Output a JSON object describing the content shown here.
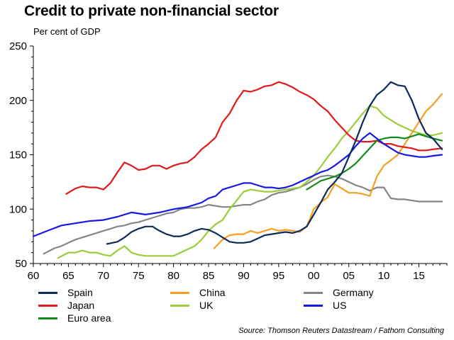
{
  "title": "Credit to private non-financial sector",
  "subtitle": "Per cent of GDP",
  "source": "Source: Thomson Reuters Datastream / Fathom Consulting",
  "chart_data": {
    "type": "line",
    "title": "Credit to private non-financial sector",
    "ylabel": "Per cent of GDP",
    "xlabel": "",
    "xlim": [
      1960,
      2019
    ],
    "ylim": [
      50,
      250
    ],
    "x_ticks": [
      "60",
      "65",
      "70",
      "75",
      "80",
      "85",
      "90",
      "95",
      "00",
      "05",
      "10",
      "15"
    ],
    "x_tick_values": [
      1960,
      1965,
      1970,
      1975,
      1980,
      1985,
      1990,
      1995,
      2000,
      2005,
      2010,
      2015
    ],
    "y_ticks": [
      "50",
      "100",
      "150",
      "200",
      "250"
    ],
    "y_tick_values": [
      50,
      100,
      150,
      200,
      250
    ],
    "legend_position": "bottom",
    "series": [
      {
        "name": "Spain",
        "color": "#0d2a5c",
        "x": [
          1970.5,
          1972,
          1973,
          1974,
          1975,
          1976,
          1977,
          1978,
          1979,
          1980,
          1981,
          1982,
          1983,
          1984,
          1985,
          1986,
          1987,
          1988,
          1989,
          1990,
          1991,
          1992,
          1993,
          1994,
          1995,
          1996,
          1997,
          1998,
          1999,
          2000,
          2001,
          2002,
          2003,
          2004,
          2005,
          2006,
          2007,
          2008,
          2009,
          2010,
          2011,
          2012,
          2013,
          2014,
          2015,
          2016,
          2017,
          2018.3
        ],
        "y": [
          68,
          70,
          74,
          79,
          82,
          84,
          84,
          80,
          77,
          75,
          75,
          77,
          80,
          82,
          81,
          78,
          74,
          70,
          69,
          69,
          70,
          73,
          76,
          77,
          78,
          79,
          78,
          80,
          84,
          95,
          106,
          118,
          125,
          133,
          148,
          163,
          180,
          195,
          205,
          210,
          217,
          214,
          213,
          200,
          183,
          170,
          165,
          155
        ]
      },
      {
        "name": "Japan",
        "color": "#e0191b",
        "x": [
          1964.7,
          1966,
          1967,
          1968,
          1969,
          1970,
          1971,
          1972,
          1973,
          1974,
          1975,
          1976,
          1977,
          1978,
          1979,
          1980,
          1981,
          1982,
          1983,
          1984,
          1985,
          1986,
          1987,
          1988,
          1989,
          1990,
          1991,
          1992,
          1993,
          1994,
          1995,
          1996,
          1997,
          1998,
          1999,
          2000,
          2001,
          2002,
          2003,
          2004,
          2005,
          2006,
          2007,
          2008,
          2009,
          2010,
          2011,
          2012,
          2013,
          2014,
          2015,
          2016,
          2017,
          2018.3
        ],
        "y": [
          114,
          119,
          121,
          120,
          120,
          118,
          124,
          134,
          143,
          140,
          136,
          137,
          140,
          140,
          137,
          140,
          142,
          143,
          148,
          155,
          160,
          166,
          180,
          188,
          200,
          209,
          208,
          210,
          213,
          214,
          217,
          215,
          212,
          208,
          205,
          201,
          195,
          190,
          182,
          175,
          168,
          163,
          162,
          162,
          163,
          160,
          160,
          158,
          157,
          156,
          154,
          154,
          155,
          156
        ]
      },
      {
        "name": "Euro area",
        "color": "#138a1c",
        "x": [
          1999,
          2000,
          2001,
          2002,
          2003,
          2004,
          2005,
          2006,
          2007,
          2008,
          2009,
          2010,
          2011,
          2012,
          2013,
          2014,
          2015,
          2016,
          2017,
          2018.3
        ],
        "y": [
          118,
          122,
          126,
          128,
          130,
          133,
          137,
          142,
          149,
          156,
          163,
          165,
          166,
          166,
          165,
          167,
          169,
          167,
          165,
          163
        ]
      },
      {
        "name": "China",
        "color": "#f5a023",
        "x": [
          1985.8,
          1987,
          1988,
          1989,
          1990,
          1991,
          1992,
          1993,
          1994,
          1995,
          1996,
          1997,
          1998,
          1999,
          2000,
          2001,
          2002,
          2003,
          2004,
          2005,
          2006,
          2007,
          2008,
          2009,
          2010,
          2011,
          2012,
          2013,
          2014,
          2015,
          2016,
          2017,
          2018.3
        ],
        "y": [
          64,
          72,
          76,
          77,
          77,
          80,
          78,
          80,
          82,
          80,
          81,
          80,
          79,
          84,
          100,
          106,
          111,
          123,
          119,
          115,
          115,
          114,
          112,
          130,
          140,
          145,
          150,
          160,
          170,
          180,
          190,
          196,
          206
        ]
      },
      {
        "name": "UK",
        "color": "#9acd36",
        "x": [
          1963.5,
          1965,
          1966,
          1967,
          1968,
          1969,
          1970,
          1971,
          1972,
          1973,
          1974,
          1975,
          1976,
          1977,
          1978,
          1979,
          1980,
          1981,
          1982,
          1983,
          1984,
          1985,
          1986,
          1987,
          1988,
          1989,
          1990,
          1991,
          1992,
          1993,
          1994,
          1995,
          1996,
          1997,
          1998,
          1999,
          2000,
          2001,
          2002,
          2003,
          2004,
          2005,
          2006,
          2007,
          2008,
          2009,
          2010,
          2011,
          2012,
          2013,
          2014,
          2015,
          2016,
          2017,
          2018.3
        ],
        "y": [
          55,
          60,
          60,
          62,
          60,
          60,
          58,
          57,
          62,
          66,
          60,
          58,
          57,
          57,
          57,
          57,
          57,
          60,
          63,
          66,
          72,
          80,
          86,
          90,
          100,
          108,
          116,
          118,
          117,
          116,
          116,
          117,
          118,
          119,
          120,
          125,
          131,
          139,
          148,
          156,
          165,
          172,
          180,
          188,
          195,
          193,
          186,
          182,
          178,
          175,
          172,
          170,
          168,
          168,
          170
        ]
      },
      {
        "name": "Germany",
        "color": "#858585",
        "x": [
          1961.5,
          1963,
          1964,
          1965,
          1966,
          1967,
          1968,
          1969,
          1970,
          1971,
          1972,
          1973,
          1974,
          1975,
          1976,
          1977,
          1978,
          1979,
          1980,
          1981,
          1982,
          1983,
          1984,
          1985,
          1986,
          1987,
          1988,
          1989,
          1990,
          1991,
          1992,
          1993,
          1994,
          1995,
          1996,
          1997,
          1998,
          1999,
          2000,
          2001,
          2002,
          2003,
          2004,
          2005,
          2006,
          2007,
          2008,
          2009,
          2010,
          2011,
          2012,
          2013,
          2014,
          2015,
          2016,
          2017,
          2018.3
        ],
        "y": [
          59,
          64,
          66,
          69,
          72,
          74,
          76,
          78,
          80,
          82,
          84,
          85,
          87,
          88,
          90,
          92,
          94,
          96,
          97,
          100,
          101,
          101,
          102,
          104,
          103,
          102,
          102,
          103,
          104,
          104,
          107,
          109,
          113,
          115,
          116,
          118,
          120,
          123,
          127,
          130,
          131,
          130,
          128,
          125,
          122,
          120,
          117,
          120,
          120,
          110,
          109,
          109,
          108,
          107,
          107,
          107,
          107
        ]
      },
      {
        "name": "US",
        "color": "#1818e6",
        "x": [
          1960,
          1962,
          1964,
          1966,
          1968,
          1970,
          1972,
          1974,
          1976,
          1978,
          1980,
          1982,
          1984,
          1985,
          1986,
          1987,
          1988,
          1989,
          1990,
          1991,
          1992,
          1993,
          1994,
          1995,
          1996,
          1997,
          1998,
          1999,
          2000,
          2001,
          2002,
          2003,
          2004,
          2005,
          2006,
          2007,
          2008,
          2009,
          2010,
          2011,
          2012,
          2013,
          2014,
          2015,
          2016,
          2017,
          2018.3
        ],
        "y": [
          75,
          80,
          85,
          87,
          89,
          90,
          93,
          97,
          95,
          97,
          100,
          102,
          106,
          110,
          112,
          118,
          120,
          122,
          124,
          124,
          122,
          120,
          120,
          119,
          120,
          122,
          125,
          128,
          131,
          134,
          136,
          140,
          145,
          150,
          158,
          165,
          170,
          165,
          160,
          156,
          152,
          150,
          149,
          148,
          148,
          149,
          150
        ]
      }
    ]
  },
  "legend": [
    {
      "label": "Spain",
      "color": "#0d2a5c"
    },
    {
      "label": "China",
      "color": "#f5a023"
    },
    {
      "label": "Germany",
      "color": "#858585"
    },
    {
      "label": "Japan",
      "color": "#e0191b"
    },
    {
      "label": "UK",
      "color": "#9acd36"
    },
    {
      "label": "US",
      "color": "#1818e6"
    },
    {
      "label": "Euro area",
      "color": "#138a1c"
    }
  ]
}
